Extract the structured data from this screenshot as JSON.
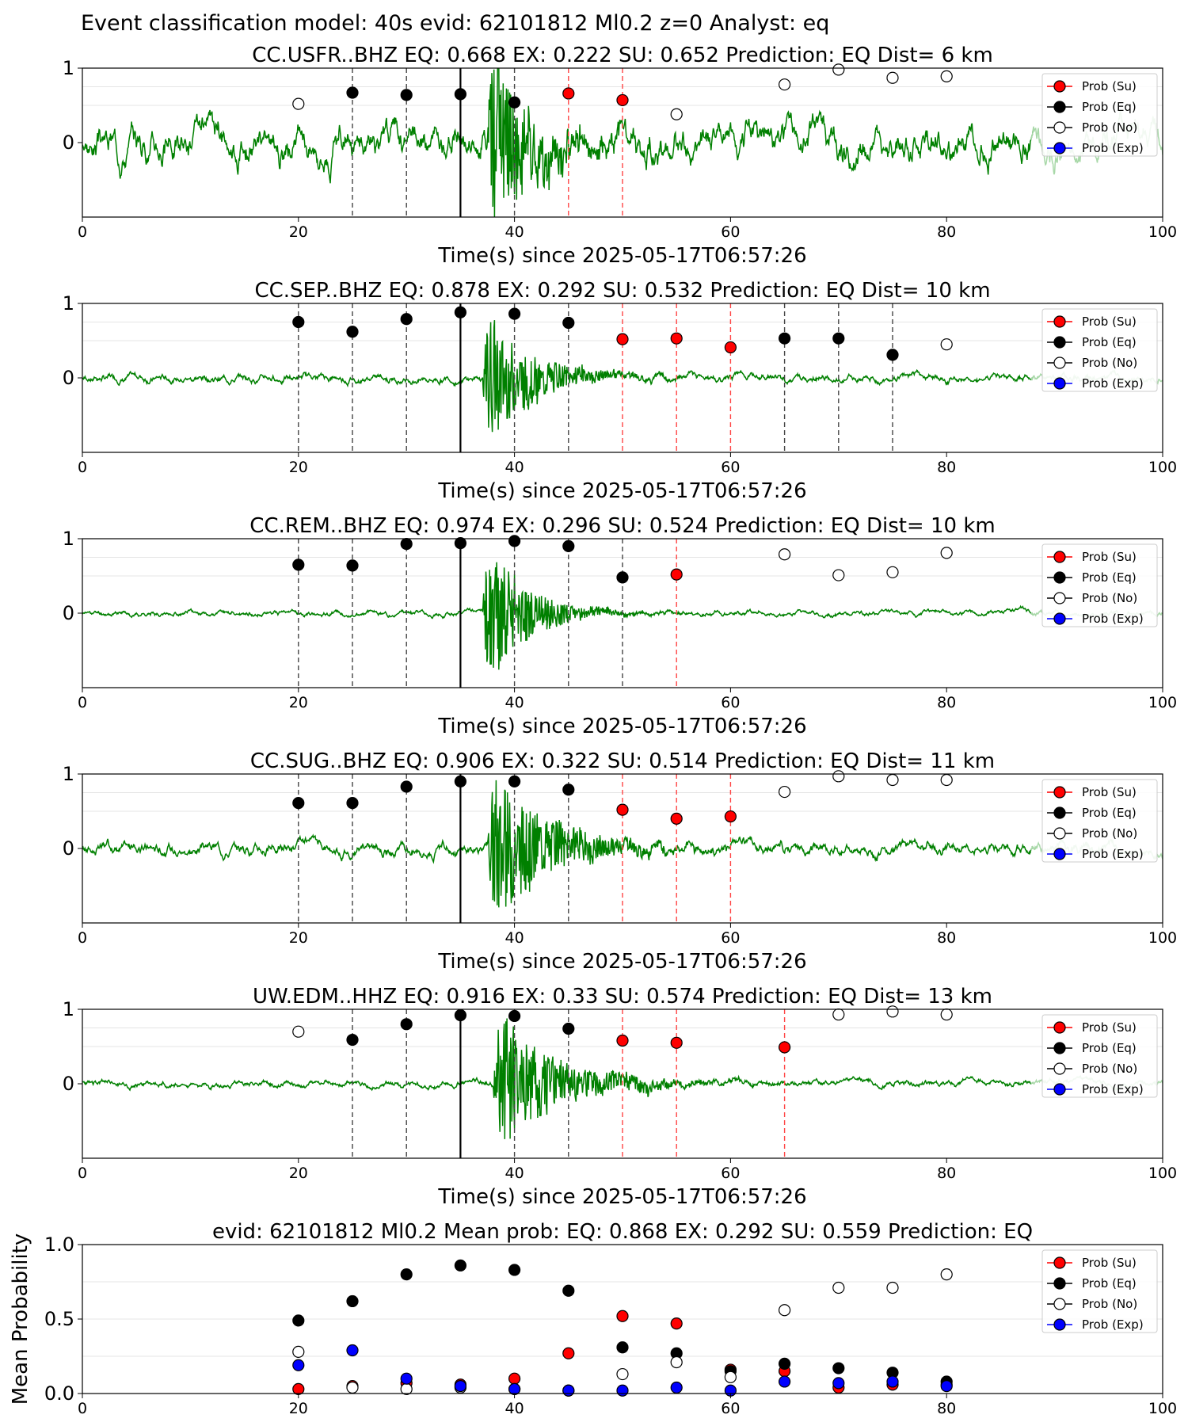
{
  "figure_title": "Event classification model: 40s evid: 62101812 Ml0.2 z=0 Analyst: eq",
  "colors": {
    "waveform": "#008000",
    "waveform_faded": "#a8d8a8",
    "su": "#ff0000",
    "eq": "#000000",
    "no": "#ffffff",
    "exp": "#0000ff",
    "eq_line": "#444444",
    "su_line": "#ff4444",
    "grid": "#dddddd"
  },
  "chart_data": [
    {
      "type": "line",
      "title": "CC.USFR..BHZ   EQ: 0.668  EX: 0.222  SU: 0.652   Prediction: EQ    Dist= 6 km",
      "xlabel": "Time(s) since 2025-05-17T06:57:26",
      "ylabel": "",
      "xlim": [
        0,
        100
      ],
      "ylim": [
        -1,
        1
      ],
      "xticks": [
        "0",
        "20",
        "40",
        "60",
        "80",
        "100"
      ],
      "yticks": [
        "0",
        "1"
      ],
      "legend": [
        "Prob (Su)",
        "Prob (Eq)",
        "Prob (No)",
        "Prob (Exp)"
      ],
      "legend_position": "upper right",
      "waveform": {
        "noise": 0.25,
        "onset": 37.5,
        "peak": 1.2,
        "decay": 3.5,
        "seed": 3
      },
      "points": [
        {
          "x": 20,
          "y": 0.52,
          "cls": "no"
        },
        {
          "x": 25,
          "y": 0.67,
          "cls": "eq"
        },
        {
          "x": 30,
          "y": 0.64,
          "cls": "eq"
        },
        {
          "x": 35,
          "y": 0.65,
          "cls": "eq"
        },
        {
          "x": 40,
          "y": 0.54,
          "cls": "eq"
        },
        {
          "x": 45,
          "y": 0.66,
          "cls": "su"
        },
        {
          "x": 50,
          "y": 0.57,
          "cls": "su"
        },
        {
          "x": 55,
          "y": 0.38,
          "cls": "no"
        },
        {
          "x": 65,
          "y": 0.78,
          "cls": "no"
        },
        {
          "x": 70,
          "y": 0.98,
          "cls": "no"
        },
        {
          "x": 75,
          "y": 0.87,
          "cls": "no"
        },
        {
          "x": 80,
          "y": 0.89,
          "cls": "no"
        }
      ]
    },
    {
      "type": "line",
      "title": "CC.SEP..BHZ   EQ: 0.878  EX: 0.292  SU: 0.532   Prediction: EQ    Dist= 10 km",
      "xlabel": "Time(s) since 2025-05-17T06:57:26",
      "ylabel": "",
      "xlim": [
        0,
        100
      ],
      "ylim": [
        -1,
        1
      ],
      "xticks": [
        "0",
        "20",
        "40",
        "60",
        "80",
        "100"
      ],
      "yticks": [
        "0",
        "1"
      ],
      "legend": [
        "Prob (Su)",
        "Prob (Eq)",
        "Prob (No)",
        "Prob (Exp)"
      ],
      "legend_position": "upper right",
      "waveform": {
        "noise": 0.06,
        "onset": 37.0,
        "peak": 0.8,
        "decay": 4.0,
        "seed": 7
      },
      "points": [
        {
          "x": 20,
          "y": 0.75,
          "cls": "eq"
        },
        {
          "x": 25,
          "y": 0.62,
          "cls": "eq"
        },
        {
          "x": 30,
          "y": 0.79,
          "cls": "eq"
        },
        {
          "x": 35,
          "y": 0.88,
          "cls": "eq"
        },
        {
          "x": 40,
          "y": 0.86,
          "cls": "eq"
        },
        {
          "x": 45,
          "y": 0.74,
          "cls": "eq"
        },
        {
          "x": 50,
          "y": 0.52,
          "cls": "su"
        },
        {
          "x": 55,
          "y": 0.53,
          "cls": "su"
        },
        {
          "x": 60,
          "y": 0.41,
          "cls": "su"
        },
        {
          "x": 65,
          "y": 0.53,
          "cls": "eq"
        },
        {
          "x": 70,
          "y": 0.53,
          "cls": "eq"
        },
        {
          "x": 75,
          "y": 0.31,
          "cls": "eq"
        },
        {
          "x": 80,
          "y": 0.45,
          "cls": "no"
        }
      ]
    },
    {
      "type": "line",
      "title": "CC.REM..BHZ   EQ: 0.974  EX: 0.296  SU: 0.524   Prediction: EQ    Dist= 10 km",
      "xlabel": "Time(s) since 2025-05-17T06:57:26",
      "ylabel": "",
      "xlim": [
        0,
        100
      ],
      "ylim": [
        -1,
        1
      ],
      "xticks": [
        "0",
        "20",
        "40",
        "60",
        "80",
        "100"
      ],
      "yticks": [
        "0",
        "1"
      ],
      "legend": [
        "Prob (Su)",
        "Prob (Eq)",
        "Prob (No)",
        "Prob (Exp)"
      ],
      "legend_position": "upper right",
      "waveform": {
        "noise": 0.04,
        "onset": 37.0,
        "peak": 0.9,
        "decay": 3.5,
        "seed": 11
      },
      "points": [
        {
          "x": 20,
          "y": 0.65,
          "cls": "eq"
        },
        {
          "x": 25,
          "y": 0.64,
          "cls": "eq"
        },
        {
          "x": 30,
          "y": 0.93,
          "cls": "eq"
        },
        {
          "x": 35,
          "y": 0.94,
          "cls": "eq"
        },
        {
          "x": 40,
          "y": 0.97,
          "cls": "eq"
        },
        {
          "x": 45,
          "y": 0.9,
          "cls": "eq"
        },
        {
          "x": 50,
          "y": 0.48,
          "cls": "eq"
        },
        {
          "x": 55,
          "y": 0.52,
          "cls": "su"
        },
        {
          "x": 65,
          "y": 0.79,
          "cls": "no"
        },
        {
          "x": 70,
          "y": 0.51,
          "cls": "no"
        },
        {
          "x": 75,
          "y": 0.55,
          "cls": "no"
        },
        {
          "x": 80,
          "y": 0.81,
          "cls": "no"
        }
      ]
    },
    {
      "type": "line",
      "title": "CC.SUG..BHZ   EQ: 0.906  EX: 0.322  SU: 0.514   Prediction: EQ    Dist= 11 km",
      "xlabel": "Time(s) since 2025-05-17T06:57:26",
      "ylabel": "",
      "xlim": [
        0,
        100
      ],
      "ylim": [
        -1,
        1
      ],
      "xticks": [
        "0",
        "20",
        "40",
        "60",
        "80",
        "100"
      ],
      "yticks": [
        "0",
        "1"
      ],
      "legend": [
        "Prob (Su)",
        "Prob (Eq)",
        "Prob (No)",
        "Prob (Exp)"
      ],
      "legend_position": "upper right",
      "waveform": {
        "noise": 0.09,
        "onset": 37.5,
        "peak": 0.9,
        "decay": 5.0,
        "seed": 17
      },
      "points": [
        {
          "x": 20,
          "y": 0.61,
          "cls": "eq"
        },
        {
          "x": 25,
          "y": 0.61,
          "cls": "eq"
        },
        {
          "x": 30,
          "y": 0.83,
          "cls": "eq"
        },
        {
          "x": 35,
          "y": 0.9,
          "cls": "eq"
        },
        {
          "x": 40,
          "y": 0.9,
          "cls": "eq"
        },
        {
          "x": 45,
          "y": 0.79,
          "cls": "eq"
        },
        {
          "x": 50,
          "y": 0.52,
          "cls": "su"
        },
        {
          "x": 55,
          "y": 0.4,
          "cls": "su"
        },
        {
          "x": 60,
          "y": 0.43,
          "cls": "su"
        },
        {
          "x": 65,
          "y": 0.76,
          "cls": "no"
        },
        {
          "x": 70,
          "y": 0.97,
          "cls": "no"
        },
        {
          "x": 75,
          "y": 0.92,
          "cls": "no"
        },
        {
          "x": 80,
          "y": 0.92,
          "cls": "no"
        }
      ]
    },
    {
      "type": "line",
      "title": "UW.EDM..HHZ   EQ: 0.916  EX: 0.33  SU: 0.574   Prediction: EQ    Dist= 13 km",
      "xlabel": "Time(s) since 2025-05-17T06:57:26",
      "ylabel": "",
      "xlim": [
        0,
        100
      ],
      "ylim": [
        -1,
        1
      ],
      "xticks": [
        "0",
        "20",
        "40",
        "60",
        "80",
        "100"
      ],
      "yticks": [
        "0",
        "1"
      ],
      "legend": [
        "Prob (Su)",
        "Prob (Eq)",
        "Prob (No)",
        "Prob (Exp)"
      ],
      "legend_position": "upper right",
      "waveform": {
        "noise": 0.05,
        "onset": 38.0,
        "peak": 0.8,
        "decay": 5.5,
        "seed": 23
      },
      "points": [
        {
          "x": 20,
          "y": 0.7,
          "cls": "no"
        },
        {
          "x": 25,
          "y": 0.59,
          "cls": "eq"
        },
        {
          "x": 30,
          "y": 0.8,
          "cls": "eq"
        },
        {
          "x": 35,
          "y": 0.92,
          "cls": "eq"
        },
        {
          "x": 40,
          "y": 0.91,
          "cls": "eq"
        },
        {
          "x": 45,
          "y": 0.74,
          "cls": "eq"
        },
        {
          "x": 50,
          "y": 0.58,
          "cls": "su"
        },
        {
          "x": 55,
          "y": 0.55,
          "cls": "su"
        },
        {
          "x": 65,
          "y": 0.49,
          "cls": "su"
        },
        {
          "x": 70,
          "y": 0.93,
          "cls": "no"
        },
        {
          "x": 75,
          "y": 0.97,
          "cls": "no"
        },
        {
          "x": 80,
          "y": 0.93,
          "cls": "no"
        }
      ]
    },
    {
      "type": "scatter",
      "title": "evid: 62101812  Ml0.2   Mean prob:   EQ: 0.868  EX: 0.292  SU: 0.559   Prediction: EQ",
      "xlabel": "",
      "ylabel": "Mean Probability",
      "xlim": [
        0,
        100
      ],
      "ylim": [
        0,
        1
      ],
      "xticks": [
        "0",
        "20",
        "40",
        "60",
        "80",
        "100"
      ],
      "yticks": [
        "0.0",
        "0.5",
        "1.0"
      ],
      "legend": [
        "Prob (Su)",
        "Prob (Eq)",
        "Prob (No)",
        "Prob (Exp)"
      ],
      "legend_position": "upper right",
      "x": [
        20,
        25,
        30,
        35,
        40,
        45,
        50,
        55,
        60,
        65,
        70,
        75,
        80
      ],
      "series": [
        {
          "name": "Prob (Su)",
          "cls": "su",
          "values": [
            0.03,
            0.05,
            0.07,
            0.06,
            0.1,
            0.27,
            0.52,
            0.47,
            0.16,
            0.15,
            0.04,
            0.06,
            0.06
          ]
        },
        {
          "name": "Prob (Eq)",
          "cls": "eq",
          "values": [
            0.49,
            0.62,
            0.8,
            0.86,
            0.83,
            0.69,
            0.31,
            0.27,
            0.15,
            0.2,
            0.17,
            0.14,
            0.08
          ]
        },
        {
          "name": "Prob (No)",
          "cls": "no",
          "values": [
            0.28,
            0.04,
            0.03,
            0.04,
            0.03,
            0.02,
            0.13,
            0.21,
            0.11,
            0.56,
            0.71,
            0.71,
            0.8
          ]
        },
        {
          "name": "Prob (Exp)",
          "cls": "exp",
          "values": [
            0.19,
            0.29,
            0.1,
            0.05,
            0.03,
            0.02,
            0.02,
            0.04,
            0.02,
            0.08,
            0.07,
            0.08,
            0.05
          ]
        }
      ]
    }
  ]
}
